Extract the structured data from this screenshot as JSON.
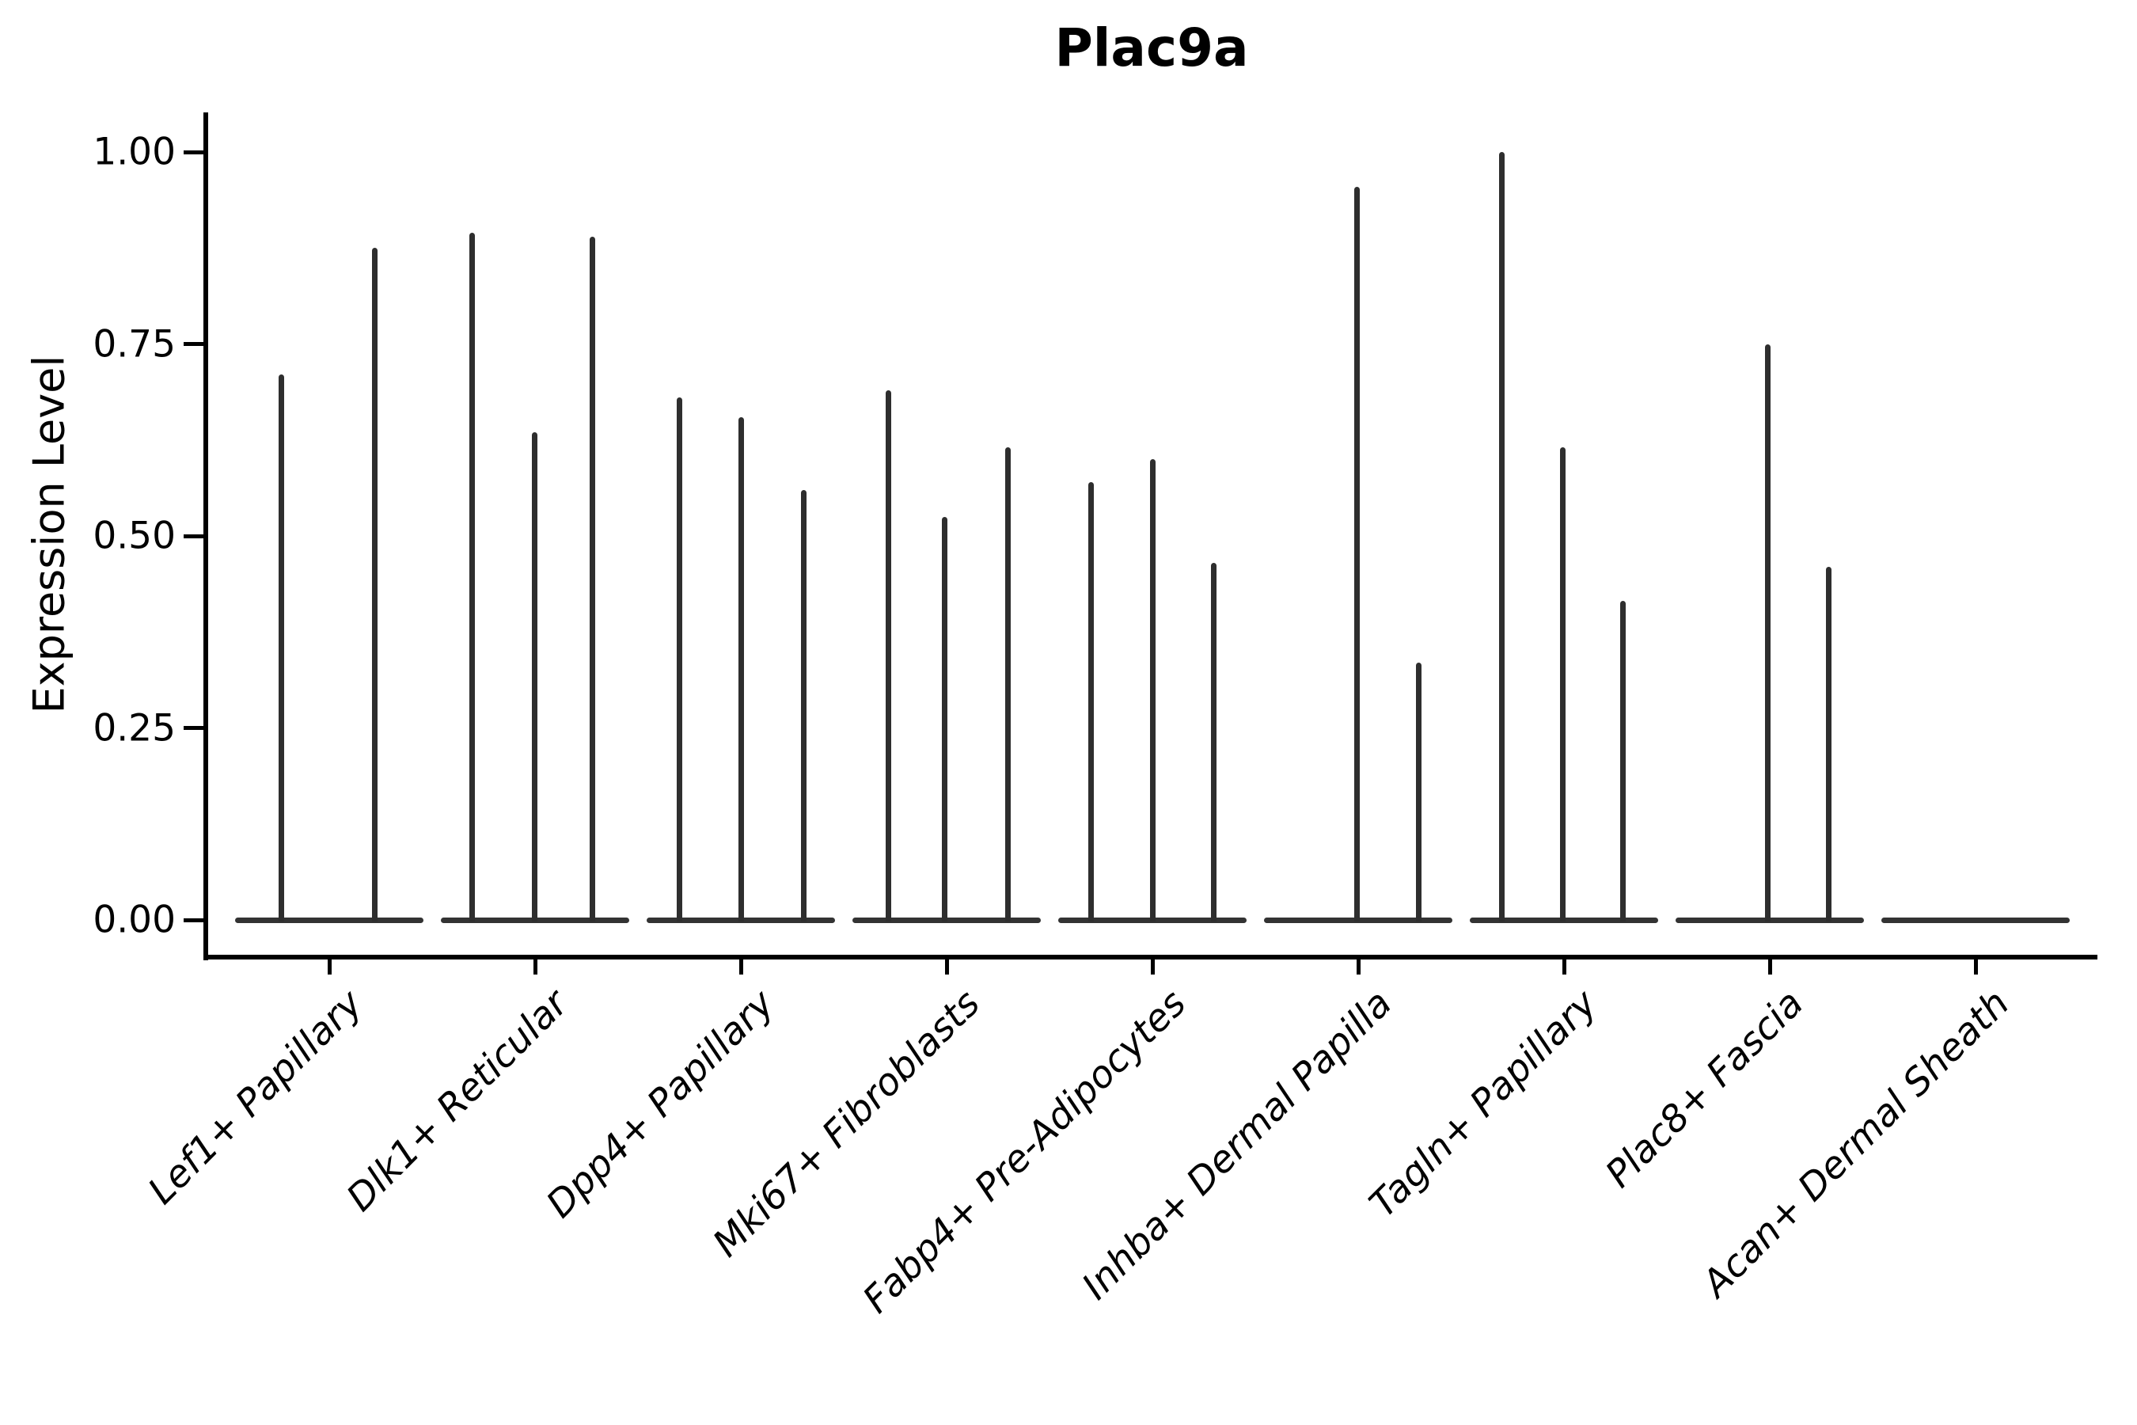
{
  "chart_data": {
    "type": "violin",
    "title": "Plac9a",
    "ylabel": "Expression Level",
    "xlabel": "",
    "ylim": [
      -0.05,
      1.05
    ],
    "yticks": [
      1.0,
      0.75,
      0.5,
      0.25,
      0.0
    ],
    "ytick_labels": [
      "1.00",
      "0.75",
      "0.50",
      "0.25",
      "0.00"
    ],
    "grid": false,
    "legend": "none",
    "categories": [
      "Lef1+ Papillary",
      "Dlk1+ Reticular",
      "Dpp4+ Papillary",
      "Mki67+ Fibroblasts",
      "Fabp4+ Pre-Adipocytes",
      "Inhba+ Dermal Papilla",
      "Tagln+ Papillary",
      "Plac8+ Fascia",
      "Acan+ Dermal Sheath"
    ],
    "series": [
      {
        "category": "Lef1+ Papillary",
        "violins": [
          {
            "dx": -61,
            "max": 0.71
          },
          {
            "dx": 57,
            "max": 0.875
          }
        ]
      },
      {
        "category": "Dlk1+ Reticular",
        "violins": [
          {
            "dx": -80,
            "max": 0.895
          },
          {
            "dx": -1,
            "max": 0.635
          },
          {
            "dx": 72,
            "max": 0.89
          }
        ]
      },
      {
        "category": "Dpp4+ Papillary",
        "violins": [
          {
            "dx": -78,
            "max": 0.68
          },
          {
            "dx": 0,
            "max": 0.655
          },
          {
            "dx": 79,
            "max": 0.56
          }
        ]
      },
      {
        "category": "Mki67+ Fibroblasts",
        "violins": [
          {
            "dx": -74,
            "max": 0.69
          },
          {
            "dx": -3,
            "max": 0.525
          },
          {
            "dx": 77,
            "max": 0.615
          }
        ]
      },
      {
        "category": "Fabp4+ Pre-Adipocytes",
        "violins": [
          {
            "dx": -78,
            "max": 0.57
          },
          {
            "dx": 0,
            "max": 0.6
          },
          {
            "dx": 77,
            "max": 0.465
          }
        ]
      },
      {
        "category": "Inhba+ Dermal Papilla",
        "violins": [
          {
            "dx": -2,
            "max": 0.955
          },
          {
            "dx": 76,
            "max": 0.335
          }
        ]
      },
      {
        "category": "Tagln+ Papillary",
        "violins": [
          {
            "dx": -79,
            "max": 1.0
          },
          {
            "dx": -2,
            "max": 0.615
          },
          {
            "dx": 74,
            "max": 0.415
          }
        ]
      },
      {
        "category": "Plac8+ Fascia",
        "violins": [
          {
            "dx": -3,
            "max": 0.75
          },
          {
            "dx": 74,
            "max": 0.46
          }
        ]
      },
      {
        "category": "Acan+ Dermal Sheath",
        "violins": []
      }
    ],
    "colors": {
      "spike": "#2e2e2e",
      "baseline_bar": "#333333",
      "axis": "#000000",
      "text": "#000000",
      "background": "#ffffff"
    }
  }
}
